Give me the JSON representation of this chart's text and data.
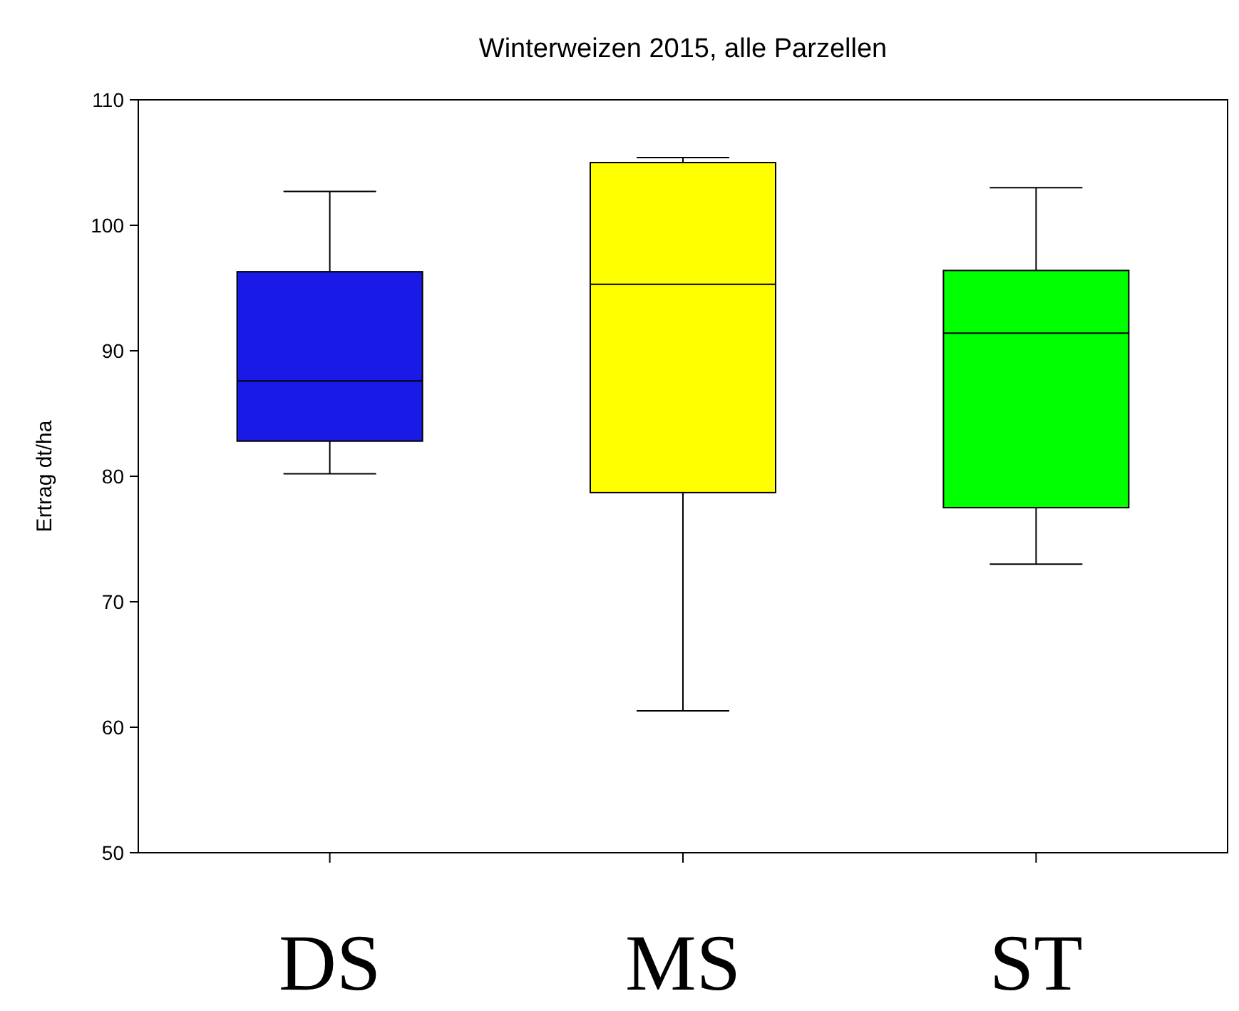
{
  "chart_data": {
    "type": "box",
    "title": "Winterweizen 2015, alle Parzellen",
    "ylabel": "Ertrag dt/ha",
    "categories": [
      "DS",
      "MS",
      "ST"
    ],
    "boxes": [
      {
        "low": 80.2,
        "q1": 82.8,
        "median": 87.6,
        "q3": 96.3,
        "high": 102.7
      },
      {
        "low": 61.3,
        "q1": 78.7,
        "median": 95.3,
        "q3": 105.0,
        "high": 105.4
      },
      {
        "low": 73.0,
        "q1": 77.5,
        "median": 91.4,
        "q3": 96.4,
        "high": 103.0
      }
    ],
    "colors": [
      "#1a1ae6",
      "#ffff00",
      "#00ff00"
    ],
    "ylim": [
      50,
      110
    ],
    "yticks": [
      50,
      60,
      70,
      80,
      90,
      100,
      110
    ],
    "grid": false
  }
}
